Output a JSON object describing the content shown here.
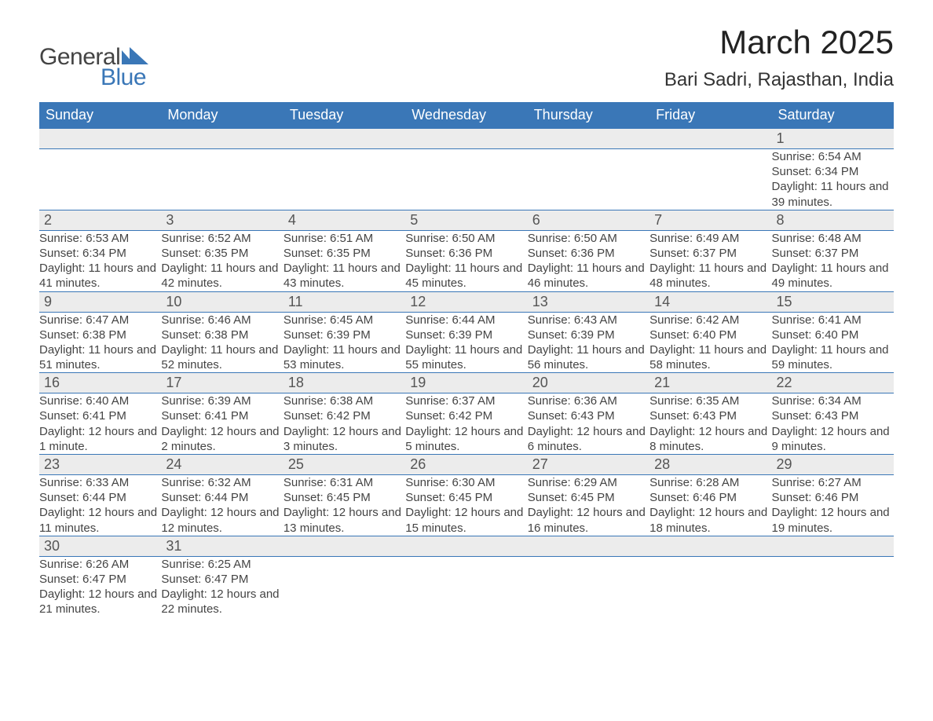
{
  "logo": {
    "word1": "General",
    "word2": "Blue"
  },
  "title": "March 2025",
  "location": "Bari Sadri, Rajasthan, India",
  "colors": {
    "header_bg": "#3a77b7",
    "header_text": "#ffffff",
    "daynum_bg": "#ececec",
    "body_text": "#444444",
    "row_border": "#3a77b7",
    "logo_accent": "#3a77b7",
    "logo_text": "#444444",
    "page_bg": "#ffffff"
  },
  "typography": {
    "title_fontsize": 42,
    "location_fontsize": 24,
    "dayheader_fontsize": 18,
    "daynum_fontsize": 18,
    "info_fontsize": 15,
    "font_family": "Arial"
  },
  "day_headers": [
    "Sunday",
    "Monday",
    "Tuesday",
    "Wednesday",
    "Thursday",
    "Friday",
    "Saturday"
  ],
  "weeks": [
    [
      null,
      null,
      null,
      null,
      null,
      null,
      {
        "n": "1",
        "sunrise": "Sunrise: 6:54 AM",
        "sunset": "Sunset: 6:34 PM",
        "daylight": "Daylight: 11 hours and 39 minutes."
      }
    ],
    [
      {
        "n": "2",
        "sunrise": "Sunrise: 6:53 AM",
        "sunset": "Sunset: 6:34 PM",
        "daylight": "Daylight: 11 hours and 41 minutes."
      },
      {
        "n": "3",
        "sunrise": "Sunrise: 6:52 AM",
        "sunset": "Sunset: 6:35 PM",
        "daylight": "Daylight: 11 hours and 42 minutes."
      },
      {
        "n": "4",
        "sunrise": "Sunrise: 6:51 AM",
        "sunset": "Sunset: 6:35 PM",
        "daylight": "Daylight: 11 hours and 43 minutes."
      },
      {
        "n": "5",
        "sunrise": "Sunrise: 6:50 AM",
        "sunset": "Sunset: 6:36 PM",
        "daylight": "Daylight: 11 hours and 45 minutes."
      },
      {
        "n": "6",
        "sunrise": "Sunrise: 6:50 AM",
        "sunset": "Sunset: 6:36 PM",
        "daylight": "Daylight: 11 hours and 46 minutes."
      },
      {
        "n": "7",
        "sunrise": "Sunrise: 6:49 AM",
        "sunset": "Sunset: 6:37 PM",
        "daylight": "Daylight: 11 hours and 48 minutes."
      },
      {
        "n": "8",
        "sunrise": "Sunrise: 6:48 AM",
        "sunset": "Sunset: 6:37 PM",
        "daylight": "Daylight: 11 hours and 49 minutes."
      }
    ],
    [
      {
        "n": "9",
        "sunrise": "Sunrise: 6:47 AM",
        "sunset": "Sunset: 6:38 PM",
        "daylight": "Daylight: 11 hours and 51 minutes."
      },
      {
        "n": "10",
        "sunrise": "Sunrise: 6:46 AM",
        "sunset": "Sunset: 6:38 PM",
        "daylight": "Daylight: 11 hours and 52 minutes."
      },
      {
        "n": "11",
        "sunrise": "Sunrise: 6:45 AM",
        "sunset": "Sunset: 6:39 PM",
        "daylight": "Daylight: 11 hours and 53 minutes."
      },
      {
        "n": "12",
        "sunrise": "Sunrise: 6:44 AM",
        "sunset": "Sunset: 6:39 PM",
        "daylight": "Daylight: 11 hours and 55 minutes."
      },
      {
        "n": "13",
        "sunrise": "Sunrise: 6:43 AM",
        "sunset": "Sunset: 6:39 PM",
        "daylight": "Daylight: 11 hours and 56 minutes."
      },
      {
        "n": "14",
        "sunrise": "Sunrise: 6:42 AM",
        "sunset": "Sunset: 6:40 PM",
        "daylight": "Daylight: 11 hours and 58 minutes."
      },
      {
        "n": "15",
        "sunrise": "Sunrise: 6:41 AM",
        "sunset": "Sunset: 6:40 PM",
        "daylight": "Daylight: 11 hours and 59 minutes."
      }
    ],
    [
      {
        "n": "16",
        "sunrise": "Sunrise: 6:40 AM",
        "sunset": "Sunset: 6:41 PM",
        "daylight": "Daylight: 12 hours and 1 minute."
      },
      {
        "n": "17",
        "sunrise": "Sunrise: 6:39 AM",
        "sunset": "Sunset: 6:41 PM",
        "daylight": "Daylight: 12 hours and 2 minutes."
      },
      {
        "n": "18",
        "sunrise": "Sunrise: 6:38 AM",
        "sunset": "Sunset: 6:42 PM",
        "daylight": "Daylight: 12 hours and 3 minutes."
      },
      {
        "n": "19",
        "sunrise": "Sunrise: 6:37 AM",
        "sunset": "Sunset: 6:42 PM",
        "daylight": "Daylight: 12 hours and 5 minutes."
      },
      {
        "n": "20",
        "sunrise": "Sunrise: 6:36 AM",
        "sunset": "Sunset: 6:43 PM",
        "daylight": "Daylight: 12 hours and 6 minutes."
      },
      {
        "n": "21",
        "sunrise": "Sunrise: 6:35 AM",
        "sunset": "Sunset: 6:43 PM",
        "daylight": "Daylight: 12 hours and 8 minutes."
      },
      {
        "n": "22",
        "sunrise": "Sunrise: 6:34 AM",
        "sunset": "Sunset: 6:43 PM",
        "daylight": "Daylight: 12 hours and 9 minutes."
      }
    ],
    [
      {
        "n": "23",
        "sunrise": "Sunrise: 6:33 AM",
        "sunset": "Sunset: 6:44 PM",
        "daylight": "Daylight: 12 hours and 11 minutes."
      },
      {
        "n": "24",
        "sunrise": "Sunrise: 6:32 AM",
        "sunset": "Sunset: 6:44 PM",
        "daylight": "Daylight: 12 hours and 12 minutes."
      },
      {
        "n": "25",
        "sunrise": "Sunrise: 6:31 AM",
        "sunset": "Sunset: 6:45 PM",
        "daylight": "Daylight: 12 hours and 13 minutes."
      },
      {
        "n": "26",
        "sunrise": "Sunrise: 6:30 AM",
        "sunset": "Sunset: 6:45 PM",
        "daylight": "Daylight: 12 hours and 15 minutes."
      },
      {
        "n": "27",
        "sunrise": "Sunrise: 6:29 AM",
        "sunset": "Sunset: 6:45 PM",
        "daylight": "Daylight: 12 hours and 16 minutes."
      },
      {
        "n": "28",
        "sunrise": "Sunrise: 6:28 AM",
        "sunset": "Sunset: 6:46 PM",
        "daylight": "Daylight: 12 hours and 18 minutes."
      },
      {
        "n": "29",
        "sunrise": "Sunrise: 6:27 AM",
        "sunset": "Sunset: 6:46 PM",
        "daylight": "Daylight: 12 hours and 19 minutes."
      }
    ],
    [
      {
        "n": "30",
        "sunrise": "Sunrise: 6:26 AM",
        "sunset": "Sunset: 6:47 PM",
        "daylight": "Daylight: 12 hours and 21 minutes."
      },
      {
        "n": "31",
        "sunrise": "Sunrise: 6:25 AM",
        "sunset": "Sunset: 6:47 PM",
        "daylight": "Daylight: 12 hours and 22 minutes."
      },
      null,
      null,
      null,
      null,
      null
    ]
  ]
}
